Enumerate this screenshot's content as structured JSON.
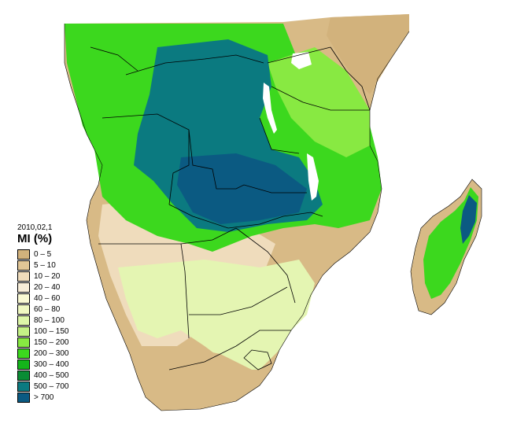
{
  "legend": {
    "date": "2010,02,1",
    "title": "MI (%)",
    "entries": [
      {
        "label": "0 – 5",
        "color": "#d2b27c"
      },
      {
        "label": "5 – 10",
        "color": "#e1c696"
      },
      {
        "label": "10 – 20",
        "color": "#efdcbc"
      },
      {
        "label": "20 – 40",
        "color": "#f8eed9"
      },
      {
        "label": "40 – 60",
        "color": "#fafad4"
      },
      {
        "label": "60 – 80",
        "color": "#f0f9c2"
      },
      {
        "label": "80 – 100",
        "color": "#ddf7a8"
      },
      {
        "label": "100 – 150",
        "color": "#c4f286"
      },
      {
        "label": "150 – 200",
        "color": "#88e942"
      },
      {
        "label": "200 – 300",
        "color": "#3cd81e"
      },
      {
        "label": "300 – 400",
        "color": "#14b41a"
      },
      {
        "label": "400 – 500",
        "color": "#0a8c34"
      },
      {
        "label": "500 – 700",
        "color": "#0b7a80"
      },
      {
        "label": "> 700",
        "color": "#0b5a82"
      }
    ]
  },
  "colors": {
    "land_arid": "#d2b27c",
    "land_semi": "#efdcbc",
    "moderate": "#ddf7a8",
    "wet": "#3cd81e",
    "very_wet": "#0b7a80",
    "border": "#000000",
    "lake": "#ffffff"
  }
}
